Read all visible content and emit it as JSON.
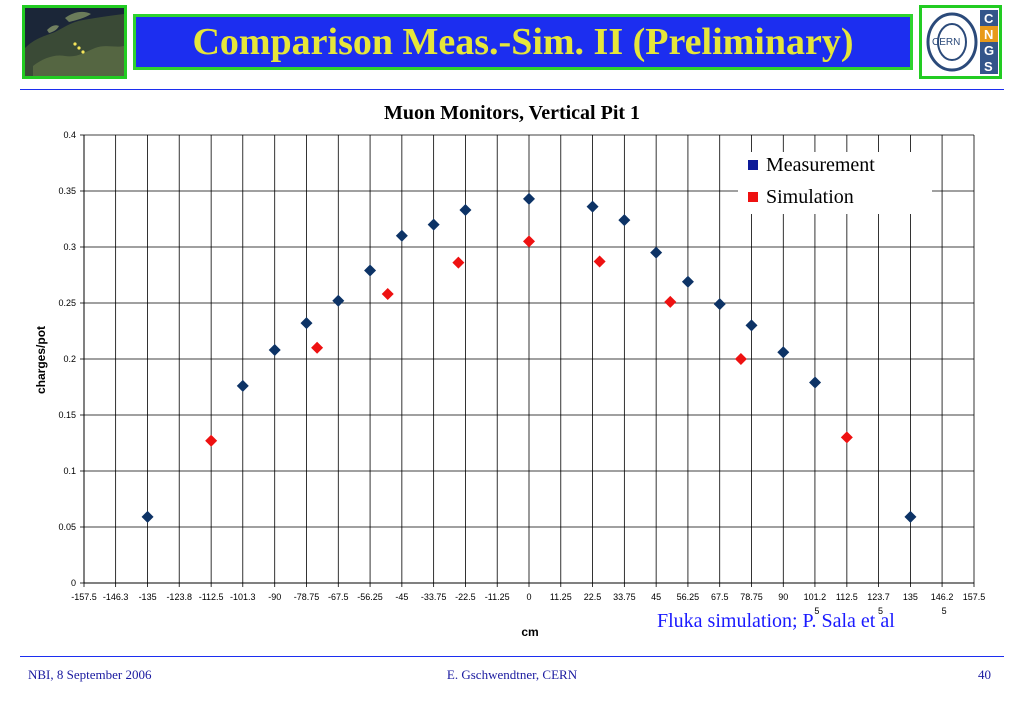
{
  "slide": {
    "title": "Comparison Meas.-Sim. II (Preliminary)",
    "logo_text": "CERN",
    "cngs_letters": [
      "C",
      "N",
      "G",
      "S"
    ],
    "credit": "Fluka simulation; P. Sala et al",
    "footer": {
      "left": "NBI, 8 September 2006",
      "center": "E. Gschwendtner, CERN",
      "right": "40"
    }
  },
  "colors": {
    "title_bg": "#1c2ef0",
    "title_text": "#e6e63a",
    "frame_green": "#2fd32f",
    "measurement": "#0d3366",
    "simulation": "#ee1111",
    "cngs_blue": "#33558a",
    "cngs_orange": "#e89a1a"
  },
  "chart_data": {
    "type": "scatter",
    "title": "Muon Monitors, Vertical Pit 1",
    "xlabel": "cm",
    "ylabel": "charges/pot",
    "ylim": [
      0,
      0.4
    ],
    "y_ticks": [
      "0",
      "0.05",
      "0.1",
      "0.15",
      "0.2",
      "0.25",
      "0.3",
      "0.35",
      "0.4"
    ],
    "x_ticks": [
      "-157.5",
      "-146.3",
      "-135",
      "-123.8",
      "-112.5",
      "-101.3",
      "-90",
      "-78.75",
      "-67.5",
      "-56.25",
      "-45",
      "-33.75",
      "-22.5",
      "-11.25",
      "0",
      "11.25",
      "22.5",
      "33.75",
      "45",
      "56.25",
      "67.5",
      "78.75",
      "90",
      "101.2",
      "112.5",
      "123.7",
      "135",
      "146.2",
      "157.5"
    ],
    "x_tick_suffix": {
      "101.2": "5",
      "123.7": "5",
      "146.2": "5"
    },
    "grid": true,
    "legend_position": "top-right",
    "series": [
      {
        "name": "Measurement",
        "color": "#0d3366",
        "points": [
          [
            -135,
            0.059
          ],
          [
            -101.3,
            0.176
          ],
          [
            -90,
            0.208
          ],
          [
            -78.75,
            0.232
          ],
          [
            -67.5,
            0.252
          ],
          [
            -56.25,
            0.279
          ],
          [
            -45,
            0.31
          ],
          [
            -33.75,
            0.32
          ],
          [
            -22.5,
            0.333
          ],
          [
            0,
            0.343
          ],
          [
            22.5,
            0.336
          ],
          [
            33.75,
            0.324
          ],
          [
            45,
            0.295
          ],
          [
            56.25,
            0.269
          ],
          [
            67.5,
            0.249
          ],
          [
            78.75,
            0.23
          ],
          [
            90,
            0.206
          ],
          [
            101.25,
            0.179
          ],
          [
            135,
            0.059
          ]
        ]
      },
      {
        "name": "Simulation",
        "color": "#ee1111",
        "points": [
          [
            -112.5,
            0.127
          ],
          [
            -75,
            0.21
          ],
          [
            -50,
            0.258
          ],
          [
            -25,
            0.286
          ],
          [
            0,
            0.305
          ],
          [
            25,
            0.287
          ],
          [
            50,
            0.251
          ],
          [
            75,
            0.2
          ],
          [
            112.5,
            0.13
          ]
        ]
      }
    ]
  }
}
